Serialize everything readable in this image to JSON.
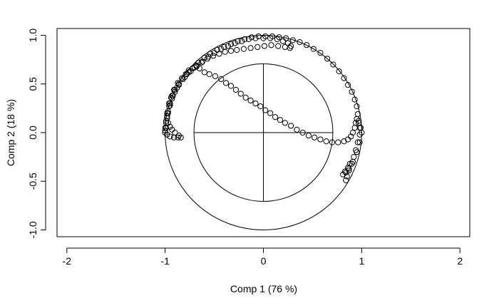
{
  "chart_data": {
    "type": "scatter",
    "title": "",
    "xlabel": "Comp 1 (76 %)",
    "ylabel": "Comp 2 (18 %)",
    "xlim": [
      -2.1,
      2.1
    ],
    "ylim": [
      -1.07,
      1.07
    ],
    "x_ticks": [
      "-2",
      "-1",
      "0",
      "1",
      "2"
    ],
    "y_ticks": [
      "-1.0",
      "-0.5",
      "0.0",
      "0.5",
      "1.0"
    ],
    "x_tick_values": [
      -2,
      -1,
      0,
      1,
      2
    ],
    "y_tick_values": [
      -1.0,
      -0.5,
      0.0,
      0.5,
      1.0
    ],
    "grid": false,
    "reference_circles": [
      1.0,
      0.707
    ],
    "reference_crosshair": true,
    "marker": "open-circle",
    "series": [
      {
        "points": [
          [
            -1.0,
            0.0
          ],
          [
            -0.99,
            0.05
          ],
          [
            -0.99,
            0.1
          ],
          [
            -0.98,
            0.15
          ],
          [
            -0.97,
            0.2
          ],
          [
            -0.95,
            0.28
          ],
          [
            -0.93,
            0.35
          ],
          [
            -0.9,
            0.42
          ],
          [
            -0.86,
            0.49
          ],
          [
            -0.82,
            0.55
          ],
          [
            -0.78,
            0.6
          ],
          [
            -0.72,
            0.66
          ],
          [
            -0.66,
            0.72
          ],
          [
            -0.6,
            0.77
          ],
          [
            -0.54,
            0.81
          ],
          [
            -0.47,
            0.85
          ],
          [
            -0.4,
            0.88
          ],
          [
            -0.33,
            0.91
          ],
          [
            -0.26,
            0.94
          ],
          [
            -0.19,
            0.96
          ],
          [
            -0.12,
            0.98
          ],
          [
            -0.05,
            0.99
          ],
          [
            0.02,
            0.99
          ],
          [
            0.09,
            0.99
          ],
          [
            0.16,
            0.98
          ],
          [
            0.23,
            0.97
          ],
          [
            0.3,
            0.95
          ],
          [
            0.37,
            0.93
          ],
          [
            0.44,
            0.9
          ],
          [
            0.51,
            0.86
          ],
          [
            0.58,
            0.82
          ],
          [
            0.65,
            0.76
          ],
          [
            0.71,
            0.7
          ],
          [
            0.77,
            0.63
          ],
          [
            0.82,
            0.56
          ],
          [
            0.86,
            0.49
          ],
          [
            0.9,
            0.42
          ],
          [
            0.93,
            0.34
          ],
          [
            0.95,
            0.27
          ],
          [
            0.96,
            0.19
          ],
          [
            0.97,
            0.12
          ],
          [
            0.98,
            0.05
          ],
          [
            0.98,
            -0.02
          ],
          [
            0.96,
            -0.1
          ],
          [
            0.94,
            -0.18
          ],
          [
            0.92,
            -0.25
          ],
          [
            0.9,
            -0.32
          ],
          [
            0.87,
            -0.39
          ],
          [
            0.85,
            -0.45
          ],
          [
            0.84,
            -0.49
          ]
        ]
      },
      {
        "points": [
          [
            -1.0,
            0.05
          ],
          [
            -0.99,
            0.12
          ],
          [
            -0.98,
            0.2
          ],
          [
            -0.96,
            0.3
          ],
          [
            -0.93,
            0.38
          ],
          [
            -0.9,
            0.44
          ],
          [
            -0.86,
            0.5
          ],
          [
            -0.8,
            0.57
          ],
          [
            -0.74,
            0.63
          ],
          [
            -0.68,
            0.68
          ],
          [
            -0.62,
            0.73
          ],
          [
            -0.56,
            0.78
          ],
          [
            -0.5,
            0.82
          ],
          [
            -0.43,
            0.86
          ],
          [
            -0.36,
            0.89
          ],
          [
            -0.29,
            0.92
          ],
          [
            -0.22,
            0.94
          ],
          [
            -0.15,
            0.96
          ],
          [
            -0.08,
            0.97
          ],
          [
            0.0,
            0.97
          ],
          [
            0.07,
            0.97
          ],
          [
            0.14,
            0.96
          ],
          [
            0.2,
            0.94
          ],
          [
            0.25,
            0.92
          ],
          [
            0.28,
            0.89
          ],
          [
            0.27,
            0.87
          ],
          [
            0.22,
            0.88
          ],
          [
            0.15,
            0.89
          ],
          [
            0.08,
            0.9
          ],
          [
            0.01,
            0.89
          ],
          [
            -0.06,
            0.88
          ],
          [
            -0.13,
            0.87
          ],
          [
            -0.2,
            0.86
          ],
          [
            -0.27,
            0.85
          ],
          [
            -0.33,
            0.84
          ],
          [
            -0.39,
            0.83
          ],
          [
            -0.45,
            0.81
          ],
          [
            -0.51,
            0.79
          ],
          [
            -0.57,
            0.76
          ],
          [
            -0.63,
            0.72
          ],
          [
            -0.68,
            0.69
          ],
          [
            -0.72,
            0.66
          ],
          [
            -0.76,
            0.64
          ],
          [
            -0.79,
            0.6
          ],
          [
            -0.83,
            0.56
          ],
          [
            -0.87,
            0.51
          ],
          [
            -0.91,
            0.44
          ],
          [
            -0.94,
            0.36
          ],
          [
            -0.96,
            0.27
          ],
          [
            -0.98,
            0.17
          ]
        ]
      },
      {
        "points": [
          [
            -1.0,
            0.02
          ],
          [
            -0.98,
            -0.02
          ],
          [
            -0.95,
            -0.04
          ],
          [
            -0.91,
            -0.05
          ],
          [
            -0.87,
            -0.05
          ],
          [
            -0.84,
            -0.05
          ],
          [
            -0.86,
            -0.03
          ],
          [
            -0.9,
            0.0
          ],
          [
            -0.93,
            0.03
          ],
          [
            -0.95,
            0.06
          ],
          [
            -0.97,
            0.1
          ],
          [
            -0.98,
            0.15
          ],
          [
            -0.97,
            0.22
          ],
          [
            -0.95,
            0.3
          ],
          [
            -0.92,
            0.38
          ],
          [
            -0.88,
            0.46
          ],
          [
            -0.82,
            0.55
          ],
          [
            -0.76,
            0.62
          ],
          [
            -0.7,
            0.67
          ],
          [
            -0.65,
            0.66
          ],
          [
            -0.6,
            0.62
          ],
          [
            -0.55,
            0.6
          ],
          [
            -0.49,
            0.58
          ],
          [
            -0.43,
            0.55
          ],
          [
            -0.38,
            0.51
          ],
          [
            -0.33,
            0.48
          ],
          [
            -0.28,
            0.44
          ],
          [
            -0.23,
            0.4
          ],
          [
            -0.18,
            0.36
          ],
          [
            -0.13,
            0.33
          ],
          [
            -0.08,
            0.3
          ],
          [
            -0.03,
            0.27
          ],
          [
            0.02,
            0.23
          ],
          [
            0.07,
            0.2
          ],
          [
            0.12,
            0.16
          ],
          [
            0.17,
            0.13
          ],
          [
            0.22,
            0.1
          ],
          [
            0.28,
            0.07
          ],
          [
            0.34,
            0.03
          ],
          [
            0.4,
            0.0
          ],
          [
            0.46,
            -0.03
          ],
          [
            0.52,
            -0.05
          ],
          [
            0.58,
            -0.07
          ],
          [
            0.64,
            -0.09
          ],
          [
            0.7,
            -0.1
          ],
          [
            0.76,
            -0.1
          ],
          [
            0.82,
            -0.09
          ],
          [
            0.86,
            -0.07
          ],
          [
            0.89,
            -0.04
          ],
          [
            0.91,
            0.0
          ],
          [
            0.93,
            0.05
          ],
          [
            0.94,
            0.1
          ],
          [
            0.95,
            0.14
          ],
          [
            0.97,
            0.1
          ],
          [
            0.99,
            0.05
          ],
          [
            1.0,
            0.0
          ],
          [
            0.98,
            -0.1
          ],
          [
            0.95,
            -0.2
          ],
          [
            0.91,
            -0.3
          ],
          [
            0.87,
            -0.37
          ],
          [
            0.84,
            -0.41
          ],
          [
            0.81,
            -0.43
          ],
          [
            0.83,
            -0.4
          ],
          [
            0.86,
            -0.36
          ],
          [
            0.88,
            -0.32
          ]
        ]
      }
    ]
  }
}
